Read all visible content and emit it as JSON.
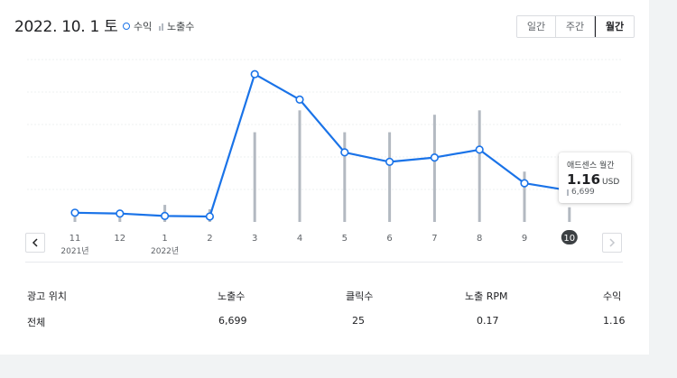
{
  "header": {
    "date": "2022. 10. 1 토",
    "legend": {
      "revenue": "수익",
      "impressions": "노출수"
    }
  },
  "tabs": [
    {
      "label": "일간",
      "active": false
    },
    {
      "label": "주간",
      "active": false
    },
    {
      "label": "월간",
      "active": true
    }
  ],
  "chart_data": {
    "type": "line",
    "categories": [
      "11",
      "12",
      "1",
      "2",
      "3",
      "4",
      "5",
      "6",
      "7",
      "8",
      "9",
      "10"
    ],
    "year_labels": [
      {
        "index": 0,
        "label": "2021년"
      },
      {
        "index": 2,
        "label": "2022년"
      }
    ],
    "selected_index": 11,
    "series": [
      {
        "name": "수익",
        "type": "line",
        "color": "#1a73e8",
        "values": [
          0.34,
          0.31,
          0.22,
          0.2,
          5.46,
          4.52,
          2.57,
          2.22,
          2.38,
          2.67,
          1.43,
          1.16
        ]
      },
      {
        "name": "노출수",
        "type": "bar",
        "color": "#b3b9c1",
        "values": [
          4500,
          4500,
          7800,
          5800,
          41000,
          51000,
          41000,
          41000,
          49000,
          51000,
          23000,
          6699
        ]
      }
    ],
    "revenue_ylim": [
      0,
      6
    ],
    "impressions_ylim": [
      0,
      80000
    ],
    "grid": true
  },
  "tooltip": {
    "title": "애드센스 월간",
    "value": "1.16",
    "unit": "USD",
    "impressions": "6,699"
  },
  "table": {
    "headers": [
      "광고 위치",
      "노출수",
      "클릭수",
      "노출 RPM",
      "수익"
    ],
    "rows": [
      [
        "전체",
        "6,699",
        "25",
        "0.17",
        "1.16"
      ]
    ]
  }
}
